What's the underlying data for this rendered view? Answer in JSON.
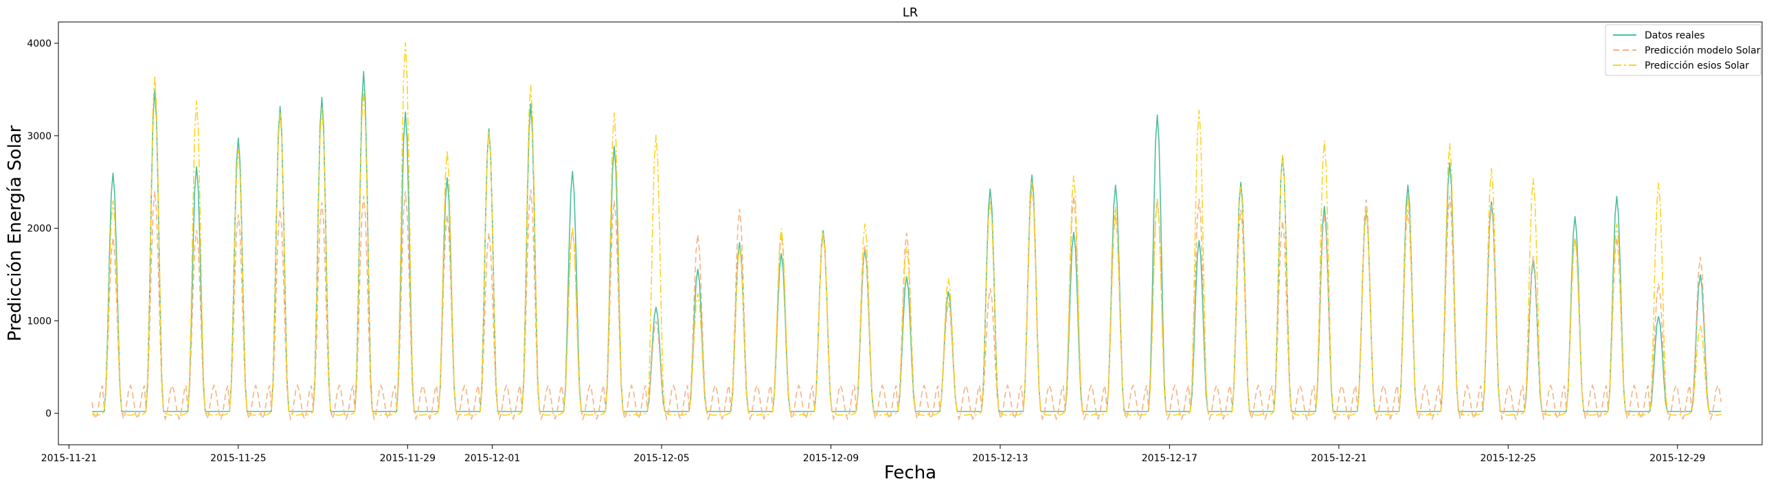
{
  "chart_data": {
    "type": "line",
    "title": "LR",
    "xlabel": "Fecha",
    "ylabel": "Predicción Energía Solar",
    "xlim": [
      "2015-11-20T18:00",
      "2015-12-31T00:00"
    ],
    "ylim": [
      -340,
      4230
    ],
    "x_ticks": [
      "2015-11-21",
      "2015-11-25",
      "2015-11-29",
      "2015-12-01",
      "2015-12-05",
      "2015-12-09",
      "2015-12-13",
      "2015-12-17",
      "2015-12-21",
      "2015-12-25",
      "2015-12-29"
    ],
    "y_ticks": [
      0,
      1000,
      2000,
      3000,
      4000
    ],
    "x_start": "2015-11-22T00:00",
    "x_end": "2015-12-29T12:00",
    "legend_position": "top-right",
    "grid": false,
    "daily_peaks": {
      "dates": [
        "2015-11-22",
        "2015-11-23",
        "2015-11-24",
        "2015-11-25",
        "2015-11-26",
        "2015-11-27",
        "2015-11-28",
        "2015-11-29",
        "2015-11-30",
        "2015-12-01",
        "2015-12-02",
        "2015-12-03",
        "2015-12-04",
        "2015-12-05",
        "2015-12-06",
        "2015-12-07",
        "2015-12-08",
        "2015-12-09",
        "2015-12-10",
        "2015-12-11",
        "2015-12-12",
        "2015-12-13",
        "2015-12-14",
        "2015-12-15",
        "2015-12-16",
        "2015-12-17",
        "2015-12-18",
        "2015-12-19",
        "2015-12-20",
        "2015-12-21",
        "2015-12-22",
        "2015-12-23",
        "2015-12-24",
        "2015-12-25",
        "2015-12-26",
        "2015-12-27",
        "2015-12-28",
        "2015-12-29",
        "2015-12-29"
      ],
      "datos_reales": [
        2600,
        3500,
        2670,
        2980,
        3320,
        3420,
        3700,
        3260,
        2550,
        3080,
        3350,
        2620,
        2890,
        1150,
        1560,
        1850,
        1730,
        1980,
        1780,
        1480,
        1320,
        2430,
        2580,
        1960,
        2470,
        3230,
        1870,
        2500,
        2790,
        2240,
        2200,
        2470,
        2710,
        2290,
        1650,
        2130,
        2350,
        1050,
        1500
      ],
      "prediccion_modelo_solar": [
        1900,
        2400,
        1980,
        2150,
        2200,
        2280,
        2350,
        2400,
        2150,
        1950,
        2420,
        2000,
        2300,
        1000,
        1930,
        2210,
        1930,
        1930,
        1810,
        1950,
        1200,
        1350,
        2450,
        2350,
        2150,
        2320,
        2320,
        2200,
        2080,
        2150,
        2310,
        2200,
        2350,
        2250,
        1700,
        1900,
        1900,
        1400,
        1690
      ],
      "prediccion_esios_solar": [
        2300,
        3650,
        3380,
        2850,
        3250,
        3300,
        3500,
        4010,
        2840,
        3050,
        3550,
        2000,
        3250,
        3010,
        1300,
        1800,
        2000,
        1950,
        2050,
        1800,
        1460,
        2300,
        2500,
        2570,
        2230,
        2300,
        3280,
        2450,
        2800,
        2950,
        2200,
        2350,
        2920,
        2650,
        2540,
        1900,
        2050,
        2490,
        950
      ]
    },
    "series": [
      {
        "name": "Datos reales",
        "color": "#4cbf99",
        "style": "solid"
      },
      {
        "name": "Predicción modelo Solar",
        "color": "#f5b183",
        "style": "dashed"
      },
      {
        "name": "Predicción esios Solar",
        "color": "#ffd21e",
        "style": "dashdot"
      }
    ]
  }
}
